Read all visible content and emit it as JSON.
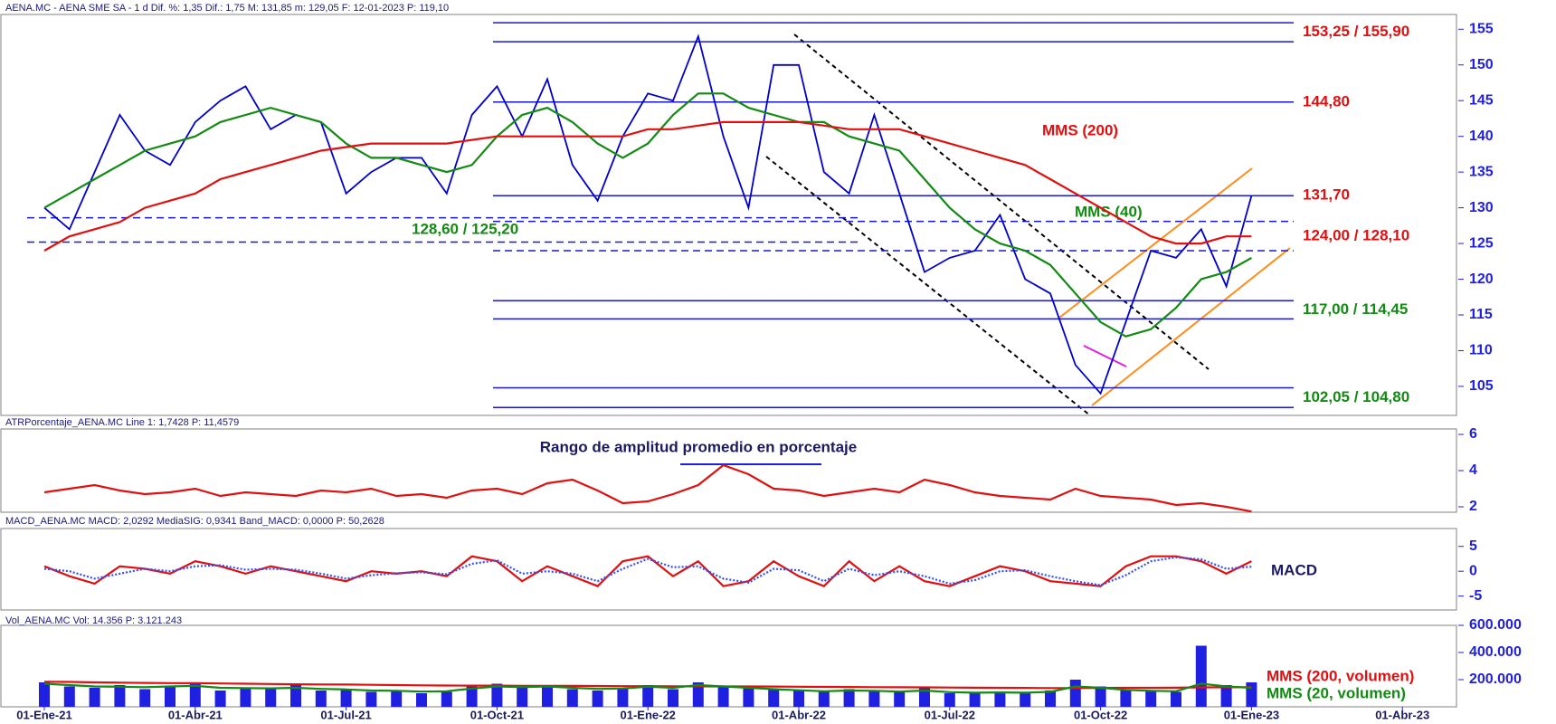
{
  "chart_data": [
    {
      "type": "line",
      "title": "AENA.MC - AENA SME SA -  1 d  Dif. %: 1,35  Dif.: 1,75  M: 131,85  m: 129,05  F: 12-01-2023  P: 119,10",
      "ylim": [
        101,
        157
      ],
      "yticks": [
        105,
        110,
        115,
        120,
        125,
        130,
        135,
        140,
        145,
        150,
        155
      ],
      "series": [
        {
          "color": "#0000cc",
          "values": [
            130,
            127,
            135,
            143,
            138,
            136,
            142,
            145,
            147,
            141,
            143,
            142,
            132,
            135,
            137,
            137,
            132,
            143,
            147,
            140,
            148,
            136,
            131,
            140,
            146,
            145,
            154,
            140,
            130,
            150,
            150,
            135,
            132,
            143,
            132,
            121,
            123,
            124,
            129,
            120,
            118,
            108,
            104,
            114,
            124,
            123,
            127,
            119,
            131.7,
            null,
            null,
            null,
            null,
            null,
            null
          ]
        },
        {
          "name": "MMS (40)",
          "color": "#138a13",
          "values": [
            130,
            132,
            134,
            136,
            138,
            139,
            140,
            142,
            143,
            144,
            143,
            142,
            139,
            137,
            137,
            136,
            135,
            136,
            140,
            143,
            144,
            142,
            139,
            137,
            139,
            143,
            146,
            146,
            144,
            143,
            142,
            142,
            140,
            139,
            138,
            134,
            130,
            127,
            125,
            124,
            122,
            118,
            114,
            112,
            113,
            116,
            120,
            121,
            123,
            null,
            null,
            null,
            null,
            null,
            null
          ]
        },
        {
          "name": "MMS (200)",
          "color": "#e01010",
          "values": [
            124,
            126,
            127,
            128,
            130,
            131,
            132,
            134,
            135,
            136,
            137,
            138,
            138.5,
            139,
            139,
            139,
            139,
            139.5,
            140,
            140,
            140,
            140,
            140,
            140,
            141,
            141,
            141.5,
            142,
            142,
            142,
            142,
            141.5,
            141,
            141,
            141,
            140,
            139,
            138,
            137,
            136,
            134,
            132,
            130,
            128,
            126,
            125,
            125,
            126,
            126,
            null,
            null,
            null,
            null,
            null,
            null
          ]
        }
      ],
      "levels": [
        {
          "label": "153,25 / 155,90",
          "values": [
            153.25,
            155.9
          ],
          "color": "#e01010",
          "style": "solid"
        },
        {
          "label": "144,80",
          "values": [
            144.8
          ],
          "color": "#e01010",
          "style": "solid"
        },
        {
          "label": "131,70",
          "values": [
            131.7
          ],
          "color": "#e01010",
          "style": "solid"
        },
        {
          "label": "124,00 / 128,10",
          "values": [
            124,
            128.1
          ],
          "color": "#e01010",
          "style": "dashed"
        },
        {
          "label": "128,60 / 125,20",
          "values": [
            128.6,
            125.2
          ],
          "color": "#138a13",
          "style": "dashed",
          "anchor": "left"
        },
        {
          "label": "117,00 / 114,45",
          "values": [
            117,
            114.45
          ],
          "color": "#138a13",
          "style": "solid"
        },
        {
          "label": "102,05 / 104,80",
          "values": [
            102.05,
            104.8
          ],
          "color": "#138a13",
          "style": "solid"
        }
      ]
    },
    {
      "type": "line",
      "title": "ATRPorcentaje_AENA.MC  Line 1: 1,7428  P: 11,4579",
      "subtitle": "Rango de amplitud promedio en porcentaje",
      "ylim": [
        1.7,
        6.3
      ],
      "yticks": [
        2,
        4,
        6
      ],
      "series": [
        {
          "color": "#e01010",
          "values": [
            2.8,
            3.0,
            3.2,
            2.9,
            2.7,
            2.8,
            3.0,
            2.6,
            2.8,
            2.7,
            2.6,
            2.9,
            2.8,
            3.0,
            2.6,
            2.7,
            2.5,
            2.9,
            3.0,
            2.7,
            3.3,
            3.5,
            2.9,
            2.2,
            2.3,
            2.7,
            3.2,
            4.3,
            3.8,
            3.0,
            2.9,
            2.6,
            2.8,
            3.0,
            2.8,
            3.5,
            3.2,
            2.8,
            2.6,
            2.5,
            2.4,
            3.0,
            2.6,
            2.5,
            2.4,
            2.1,
            2.2,
            2.0,
            1.74,
            null,
            null,
            null,
            null,
            null,
            null
          ]
        }
      ]
    },
    {
      "type": "line",
      "title": "MACD_AENA.MC  MACD: 2,0292  MediaSIG: 0,9341  Band_MACD: 0,0000  P: 50,2628",
      "subtitle": "MACD",
      "ylim": [
        -7.8,
        8.6
      ],
      "yticks": [
        -5,
        0,
        5
      ],
      "series": [
        {
          "color": "#e01010",
          "values": [
            1,
            -1,
            -2.5,
            1,
            0.5,
            -0.5,
            2,
            1,
            -0.5,
            1,
            0,
            -1,
            -2,
            0,
            -0.5,
            0,
            -1,
            3,
            2,
            -2,
            1,
            -1,
            -3,
            2,
            3,
            -1,
            2,
            -3,
            -2,
            2,
            -1,
            -3,
            2,
            -2,
            1,
            -2,
            -3,
            -1,
            1,
            0,
            -2,
            -2.5,
            -3,
            1,
            3,
            3,
            2,
            -0.5,
            2.03,
            null,
            null,
            null,
            null,
            null,
            null
          ]
        },
        {
          "color": "#3050ff",
          "values": [
            0.5,
            0,
            -1.5,
            -0.5,
            0.5,
            0,
            1,
            1.2,
            0.3,
            0.5,
            0.3,
            -0.5,
            -1.5,
            -0.8,
            -0.4,
            -0.2,
            -0.6,
            1.5,
            2.2,
            -0.5,
            0,
            -0.5,
            -2,
            0.5,
            2.5,
            0.8,
            1,
            -1.5,
            -2.3,
            0.5,
            0.2,
            -2,
            0.5,
            -0.8,
            0,
            -1,
            -2.5,
            -1.8,
            0,
            0.2,
            -1,
            -2,
            -2.8,
            -0.8,
            2,
            2.8,
            2.4,
            0.5,
            0.93,
            null,
            null,
            null,
            null,
            null,
            null
          ]
        }
      ]
    },
    {
      "type": "bar",
      "title": "Vol_AENA.MC  Vol: 14.356  P: 3.121.243",
      "categories": [
        "01-Ene-21",
        null,
        null,
        null,
        null,
        null,
        "01-Abr-21",
        null,
        null,
        null,
        null,
        null,
        "01-Jul-21",
        null,
        null,
        null,
        null,
        null,
        "01-Oct-21",
        null,
        null,
        null,
        null,
        null,
        "01-Ene-22",
        null,
        null,
        null,
        null,
        null,
        "01-Abr-22",
        null,
        null,
        null,
        null,
        null,
        "01-Jul-22",
        null,
        null,
        null,
        null,
        null,
        "01-Oct-22",
        null,
        null,
        null,
        null,
        null,
        "01-Ene-23",
        null,
        null,
        null,
        null,
        null,
        "01-Abr-23"
      ],
      "ylim": [
        0,
        600000
      ],
      "yticks": [
        {
          "value": 200000,
          "label": "200.000"
        },
        {
          "value": 400000,
          "label": "400.000"
        },
        {
          "value": 600000,
          "label": "600.000"
        }
      ],
      "series": [
        {
          "color": "#2020e0",
          "values": [
            180000,
            150000,
            140000,
            160000,
            130000,
            150000,
            170000,
            120000,
            140000,
            130000,
            160000,
            120000,
            130000,
            110000,
            120000,
            100000,
            110000,
            150000,
            170000,
            140000,
            160000,
            130000,
            120000,
            140000,
            160000,
            130000,
            180000,
            150000,
            140000,
            130000,
            120000,
            110000,
            130000,
            120000,
            110000,
            140000,
            100000,
            100000,
            110000,
            100000,
            120000,
            200000,
            150000,
            120000,
            120000,
            110000,
            450000,
            160000,
            180000,
            null,
            null,
            null,
            null,
            null,
            null
          ]
        },
        {
          "name": "MMS (200, volumen)",
          "color": "#e01010",
          "type": "line",
          "values": [
            185000,
            183000,
            180000,
            178000,
            176000,
            175000,
            174000,
            172000,
            170000,
            168000,
            166000,
            165000,
            164000,
            162000,
            160000,
            158000,
            157000,
            156000,
            156000,
            155000,
            155000,
            154000,
            153000,
            152000,
            152000,
            151000,
            151000,
            150000,
            150000,
            149000,
            148000,
            147000,
            146000,
            145000,
            144000,
            143000,
            142000,
            141000,
            140000,
            139000,
            138000,
            138000,
            139000,
            140000,
            140000,
            141000,
            143000,
            144000,
            145000,
            null,
            null,
            null,
            null,
            null,
            null
          ]
        },
        {
          "name": "MMS (20, volumen)",
          "color": "#138a13",
          "type": "line",
          "values": [
            170000,
            160000,
            150000,
            148000,
            145000,
            150000,
            155000,
            140000,
            138000,
            136000,
            140000,
            132000,
            128000,
            120000,
            118000,
            112000,
            115000,
            135000,
            150000,
            145000,
            150000,
            140000,
            132000,
            135000,
            148000,
            140000,
            160000,
            150000,
            140000,
            130000,
            122000,
            115000,
            120000,
            118000,
            112000,
            120000,
            108000,
            104000,
            106000,
            104000,
            110000,
            150000,
            140000,
            125000,
            118000,
            115000,
            170000,
            150000,
            140000,
            null,
            null,
            null,
            null,
            null,
            null
          ]
        }
      ]
    }
  ]
}
